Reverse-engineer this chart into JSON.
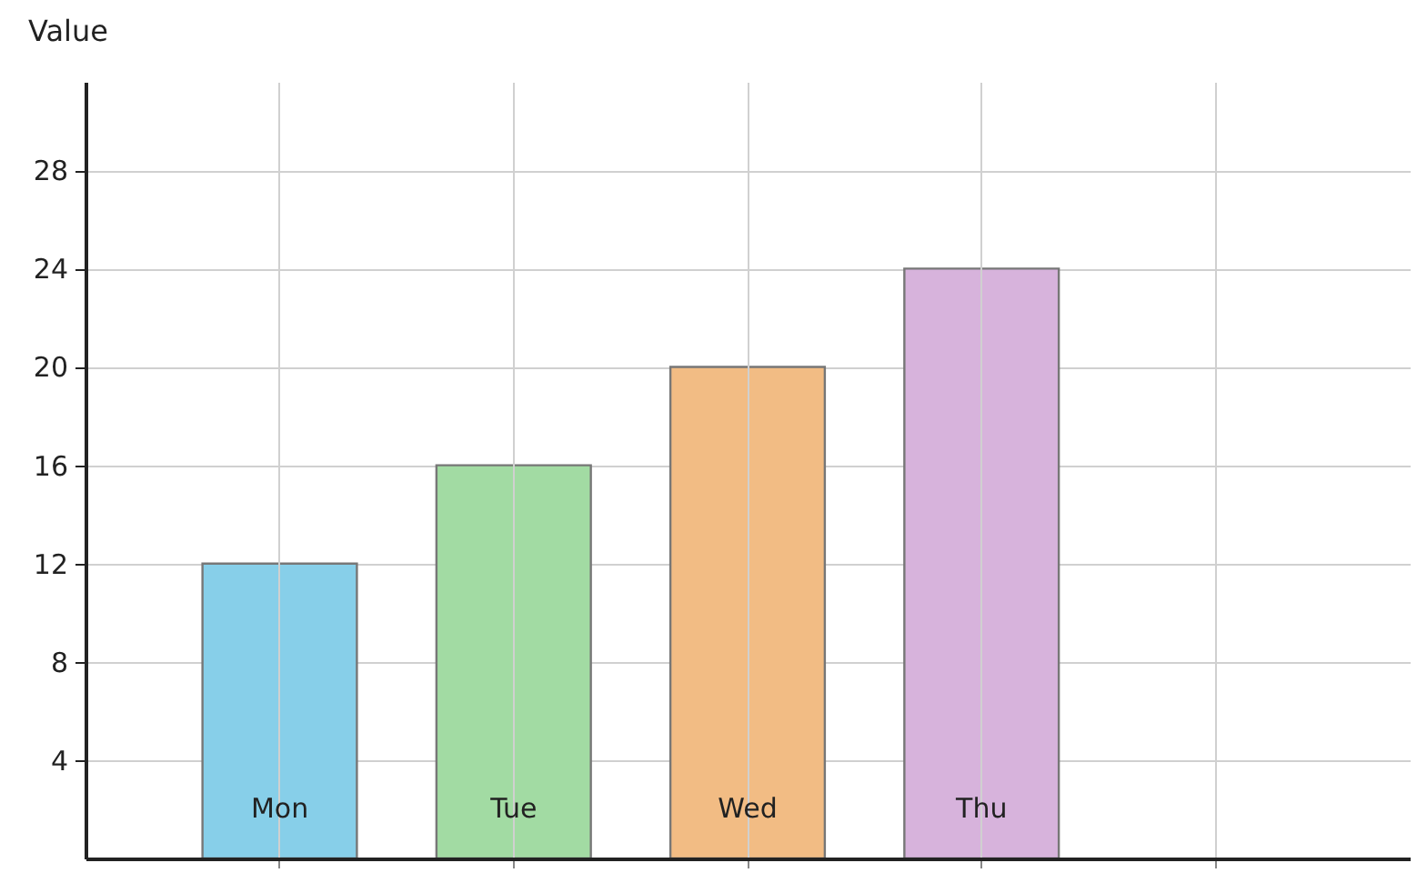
{
  "chart_data": {
    "type": "bar",
    "ylabel": "Value",
    "categories": [
      "Mon",
      "Tue",
      "Wed",
      "Thu",
      null
    ],
    "values": [
      12,
      16,
      20,
      24,
      null
    ],
    "colors": [
      "#87cfe9",
      "#a2dba3",
      "#f2bc84",
      "#d7b3dc",
      null
    ],
    "ylim": [
      0,
      31.6
    ],
    "yticks": [
      4,
      8,
      12,
      16,
      20,
      24,
      28
    ],
    "grid": true
  }
}
